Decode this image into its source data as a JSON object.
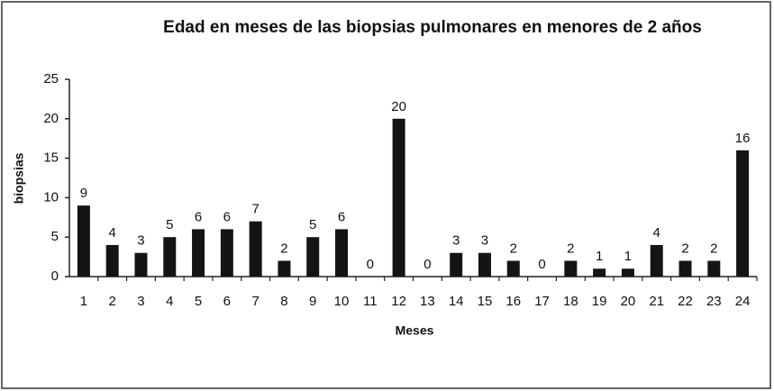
{
  "chart_data": {
    "type": "bar",
    "title": "Edad en meses de las biopsias pulmonares en menores de 2 años",
    "x_label": "Meses",
    "y_label": "biopsias",
    "categories": [
      "1",
      "2",
      "3",
      "4",
      "5",
      "6",
      "7",
      "8",
      "9",
      "10",
      "11",
      "12",
      "13",
      "14",
      "15",
      "16",
      "17",
      "18",
      "19",
      "20",
      "21",
      "22",
      "23",
      "24"
    ],
    "values": [
      9,
      4,
      3,
      5,
      6,
      6,
      7,
      2,
      5,
      6,
      0,
      20,
      0,
      3,
      3,
      2,
      0,
      2,
      1,
      1,
      4,
      2,
      2,
      16
    ],
    "color": "#141414",
    "ylim": [
      0,
      25
    ],
    "yticks": [
      0,
      5,
      10,
      15,
      20,
      25
    ],
    "grid": false
  }
}
